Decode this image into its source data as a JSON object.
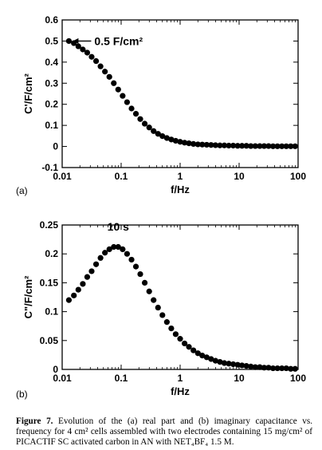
{
  "chart_data": [
    {
      "type": "scatter",
      "panel_label": "(a)",
      "xlabel": "f/Hz",
      "ylabel": "C'/F/cm²",
      "x_scale": "log",
      "xlim": [
        0.01,
        100
      ],
      "ylim": [
        -0.1,
        0.6
      ],
      "xticks": [
        "0.01",
        "0.1",
        "1",
        "10",
        "100"
      ],
      "yticks": [
        "-0.1",
        "0",
        "0.1",
        "0.2",
        "0.3",
        "0.4",
        "0.5",
        "0.6"
      ],
      "annotation": {
        "text": "0.5 F/cm²",
        "x": 0.013,
        "y": 0.5
      },
      "x": [
        0.013,
        0.0158,
        0.0188,
        0.0224,
        0.0266,
        0.0316,
        0.0376,
        0.0447,
        0.0531,
        0.0631,
        0.075,
        0.0891,
        0.106,
        0.126,
        0.15,
        0.178,
        0.211,
        0.251,
        0.299,
        0.355,
        0.422,
        0.501,
        0.596,
        0.708,
        0.841,
        1.0,
        1.19,
        1.41,
        1.68,
        2.0,
        2.37,
        2.82,
        3.35,
        3.98,
        4.73,
        5.62,
        6.68,
        7.94,
        9.44,
        11.2,
        13.3,
        15.8,
        18.8,
        22.4,
        26.6,
        31.6,
        37.6,
        44.7,
        53.1,
        63.1,
        75.0,
        89.1
      ],
      "y": [
        0.5,
        0.49,
        0.475,
        0.46,
        0.445,
        0.425,
        0.405,
        0.38,
        0.355,
        0.33,
        0.3,
        0.27,
        0.24,
        0.21,
        0.18,
        0.155,
        0.13,
        0.108,
        0.09,
        0.073,
        0.06,
        0.049,
        0.04,
        0.033,
        0.027,
        0.022,
        0.018,
        0.015,
        0.012,
        0.01,
        0.009,
        0.008,
        0.007,
        0.006,
        0.005,
        0.005,
        0.004,
        0.004,
        0.003,
        0.003,
        0.003,
        0.002,
        0.002,
        0.002,
        0.002,
        0.002,
        0.001,
        0.001,
        0.001,
        0.001,
        0.001,
        0.001
      ]
    },
    {
      "type": "scatter",
      "panel_label": "(b)",
      "xlabel": "f/Hz",
      "ylabel": "C\"/F/cm²",
      "x_scale": "log",
      "xlim": [
        0.01,
        100
      ],
      "ylim": [
        0,
        0.25
      ],
      "xticks": [
        "0.01",
        "0.1",
        "1",
        "10",
        "100"
      ],
      "yticks": [
        "0",
        "0.05",
        "0.1",
        "0.15",
        "0.2",
        "0.25"
      ],
      "annotation": {
        "text": "10 s",
        "x": 0.0891,
        "y": 0.24
      },
      "x": [
        0.013,
        0.0158,
        0.0188,
        0.0224,
        0.0266,
        0.0316,
        0.0376,
        0.0447,
        0.0531,
        0.0631,
        0.075,
        0.0891,
        0.106,
        0.126,
        0.15,
        0.178,
        0.211,
        0.251,
        0.299,
        0.355,
        0.422,
        0.501,
        0.596,
        0.708,
        0.841,
        1.0,
        1.19,
        1.41,
        1.68,
        2.0,
        2.37,
        2.82,
        3.35,
        3.98,
        4.73,
        5.62,
        6.68,
        7.94,
        9.44,
        11.2,
        13.3,
        15.8,
        18.8,
        22.4,
        26.6,
        31.6,
        37.6,
        44.7,
        53.1,
        63.1,
        75.0,
        89.1
      ],
      "y": [
        0.12,
        0.128,
        0.138,
        0.148,
        0.16,
        0.17,
        0.182,
        0.193,
        0.202,
        0.208,
        0.212,
        0.212,
        0.208,
        0.2,
        0.19,
        0.178,
        0.165,
        0.15,
        0.135,
        0.12,
        0.107,
        0.094,
        0.082,
        0.071,
        0.061,
        0.053,
        0.045,
        0.039,
        0.033,
        0.028,
        0.024,
        0.021,
        0.018,
        0.015,
        0.013,
        0.011,
        0.01,
        0.009,
        0.008,
        0.007,
        0.006,
        0.005,
        0.004,
        0.004,
        0.003,
        0.003,
        0.002,
        0.002,
        0.002,
        0.002,
        0.001,
        0.001
      ]
    }
  ],
  "caption": {
    "label": "Figure 7.",
    "text": " Evolution of the (a) real part and (b) imaginary capacitance vs. frequency for 4 cm² cells assembled with two electrodes containing 15 mg/cm² of PICACTIF SC activated carbon in AN with NET₄BF₄ 1.5 M."
  }
}
